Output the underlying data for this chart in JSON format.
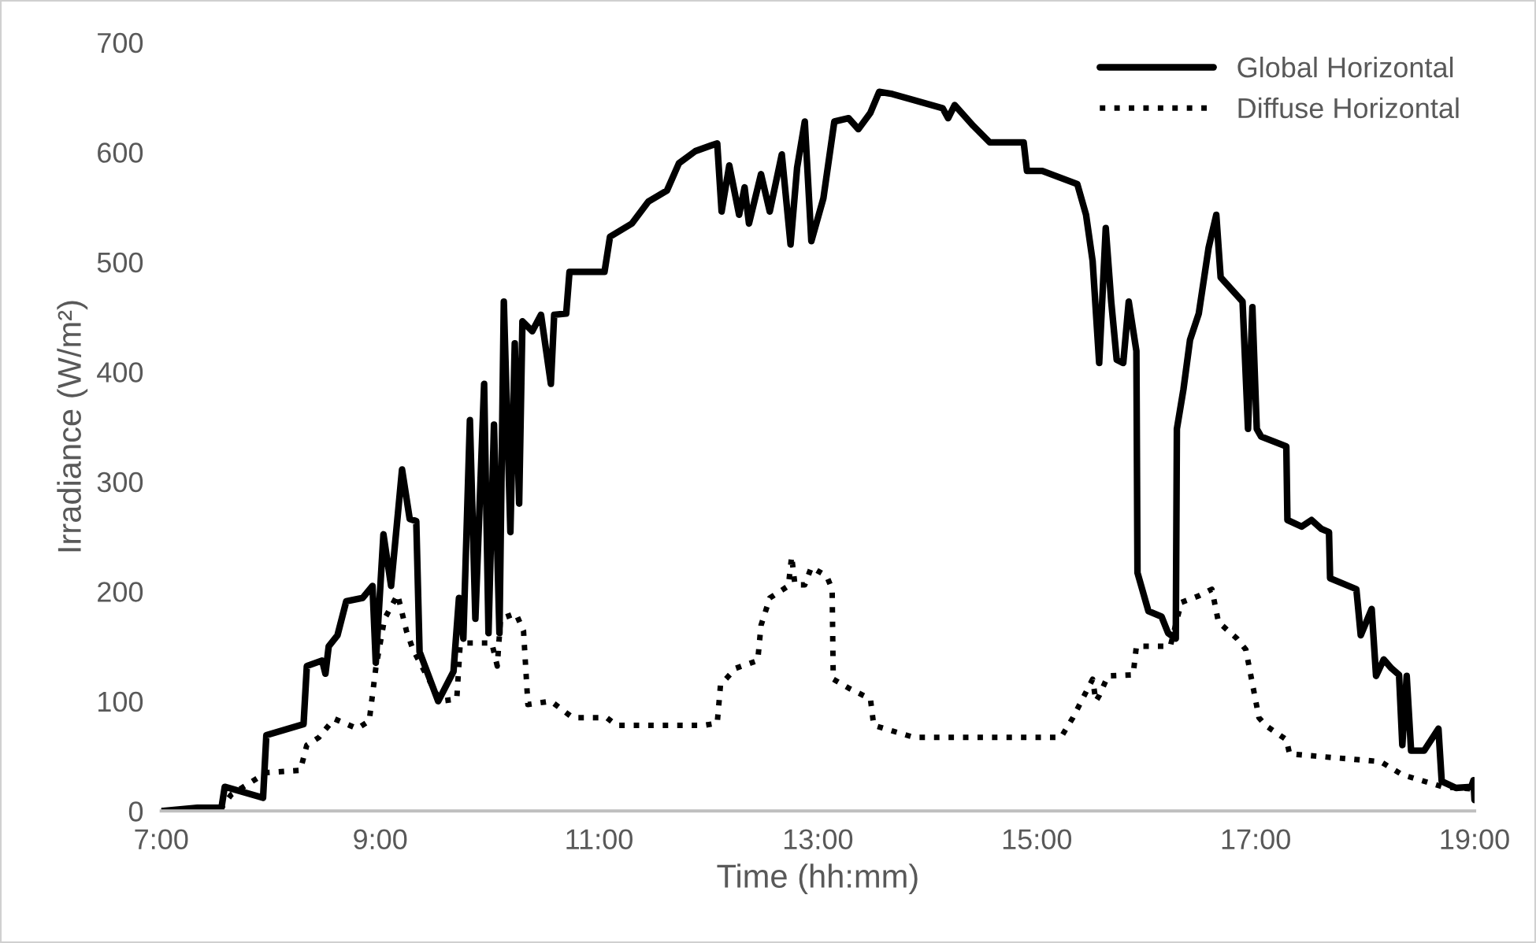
{
  "chart_data": {
    "type": "line",
    "xlabel": "Time (hh:mm)",
    "ylabel": "Irradiance (W/m²)",
    "xlim": [
      7,
      19
    ],
    "ylim": [
      0,
      700
    ],
    "xticks": [
      {
        "value": 7,
        "label": "7:00"
      },
      {
        "value": 9,
        "label": "9:00"
      },
      {
        "value": 11,
        "label": "11:00"
      },
      {
        "value": 13,
        "label": "13:00"
      },
      {
        "value": 15,
        "label": "15:00"
      },
      {
        "value": 17,
        "label": "17:00"
      },
      {
        "value": 19,
        "label": "19:00"
      }
    ],
    "yticks": [
      0,
      100,
      200,
      300,
      400,
      500,
      600,
      700
    ],
    "grid": false,
    "legend": "top right",
    "series": [
      {
        "name": "Global Horizontal",
        "color": "#000000",
        "line_style": "solid",
        "x": [
          7.0,
          7.33,
          7.55,
          7.58,
          7.93,
          7.96,
          8.3,
          8.33,
          8.47,
          8.5,
          8.53,
          8.61,
          8.69,
          8.84,
          8.93,
          8.96,
          9.03,
          9.1,
          9.2,
          9.27,
          9.33,
          9.36,
          9.53,
          9.67,
          9.72,
          9.76,
          9.82,
          9.87,
          9.95,
          9.99,
          10.04,
          10.09,
          10.13,
          10.19,
          10.23,
          10.27,
          10.3,
          10.39,
          10.47,
          10.56,
          10.59,
          10.7,
          10.73,
          11.05,
          11.1,
          11.3,
          11.45,
          11.62,
          11.73,
          11.88,
          12.02,
          12.08,
          12.12,
          12.19,
          12.28,
          12.33,
          12.37,
          12.48,
          12.56,
          12.67,
          12.75,
          12.81,
          12.88,
          12.94,
          13.05,
          13.15,
          13.28,
          13.37,
          13.48,
          13.56,
          13.68,
          13.86,
          14.14,
          14.19,
          14.25,
          14.42,
          14.57,
          14.88,
          14.91,
          15.05,
          15.37,
          15.45,
          15.51,
          15.57,
          15.63,
          15.68,
          15.73,
          15.79,
          15.84,
          15.91,
          15.92,
          16.02,
          16.14,
          16.2,
          16.27,
          16.28,
          16.34,
          16.4,
          16.48,
          16.57,
          16.64,
          16.68,
          16.88,
          16.93,
          16.97,
          17.01,
          17.05,
          17.28,
          17.29,
          17.42,
          17.51,
          17.6,
          17.67,
          17.68,
          17.92,
          17.96,
          18.06,
          18.1,
          18.17,
          18.24,
          18.31,
          18.34,
          18.38,
          18.42,
          18.54,
          18.67,
          18.7,
          18.83,
          18.97,
          18.99,
          19.0
        ],
        "values": [
          0,
          3,
          3,
          22,
          12,
          69,
          79,
          132,
          137,
          125,
          150,
          160,
          191,
          194,
          205,
          135,
          252,
          205,
          311,
          266,
          264,
          145,
          100,
          127,
          194,
          157,
          356,
          175,
          389,
          162,
          352,
          162,
          464,
          254,
          426,
          280,
          446,
          437,
          452,
          389,
          452,
          453,
          491,
          491,
          523,
          535,
          555,
          565,
          590,
          601,
          606,
          608,
          546,
          588,
          543,
          568,
          535,
          580,
          546,
          598,
          516,
          586,
          628,
          519,
          558,
          628,
          631,
          621,
          636,
          655,
          653,
          648,
          640,
          631,
          643,
          624,
          609,
          609,
          583,
          583,
          571,
          543,
          501,
          408,
          531,
          464,
          411,
          408,
          464,
          419,
          217,
          182,
          177,
          162,
          157,
          348,
          384,
          429,
          453,
          513,
          543,
          486,
          464,
          348,
          459,
          348,
          341,
          332,
          265,
          259,
          265,
          257,
          254,
          212,
          202,
          160,
          184,
          123,
          138,
          130,
          124,
          60,
          123,
          55,
          55,
          75,
          27,
          21,
          22,
          28,
          10
        ]
      },
      {
        "name": "Diffuse Horizontal",
        "color": "#000000",
        "line_style": "dotted",
        "x": [
          7.0,
          7.55,
          7.64,
          7.96,
          8.27,
          8.33,
          8.44,
          8.58,
          8.79,
          8.9,
          8.96,
          9.04,
          9.16,
          9.24,
          9.3,
          9.55,
          9.7,
          9.73,
          9.79,
          10.02,
          10.07,
          10.1,
          10.24,
          10.31,
          10.35,
          10.56,
          10.76,
          11.07,
          11.16,
          11.96,
          12.08,
          12.11,
          12.25,
          12.45,
          12.48,
          12.56,
          12.73,
          12.76,
          12.79,
          12.88,
          12.94,
          13.08,
          13.13,
          13.14,
          13.28,
          13.48,
          13.51,
          13.88,
          15.22,
          15.33,
          15.51,
          15.54,
          15.57,
          15.65,
          15.88,
          15.91,
          16.22,
          16.32,
          16.48,
          16.6,
          16.66,
          16.83,
          16.91,
          17.03,
          17.09,
          17.28,
          17.31,
          18.14,
          18.34,
          18.71,
          19.0
        ],
        "values": [
          0,
          3,
          15,
          35,
          37,
          60,
          67,
          84,
          75,
          82,
          130,
          175,
          197,
          164,
          147,
          100,
          102,
          150,
          153,
          153,
          132,
          175,
          180,
          164,
          97,
          100,
          85,
          85,
          78,
          78,
          80,
          115,
          130,
          137,
          169,
          194,
          205,
          232,
          206,
          206,
          222,
          214,
          202,
          120,
          112,
          102,
          78,
          67,
          67,
          85,
          120,
          100,
          105,
          123,
          124,
          150,
          150,
          190,
          196,
          202,
          172,
          157,
          147,
          85,
          78,
          65,
          52,
          45,
          33,
          22,
          20
        ]
      }
    ]
  }
}
